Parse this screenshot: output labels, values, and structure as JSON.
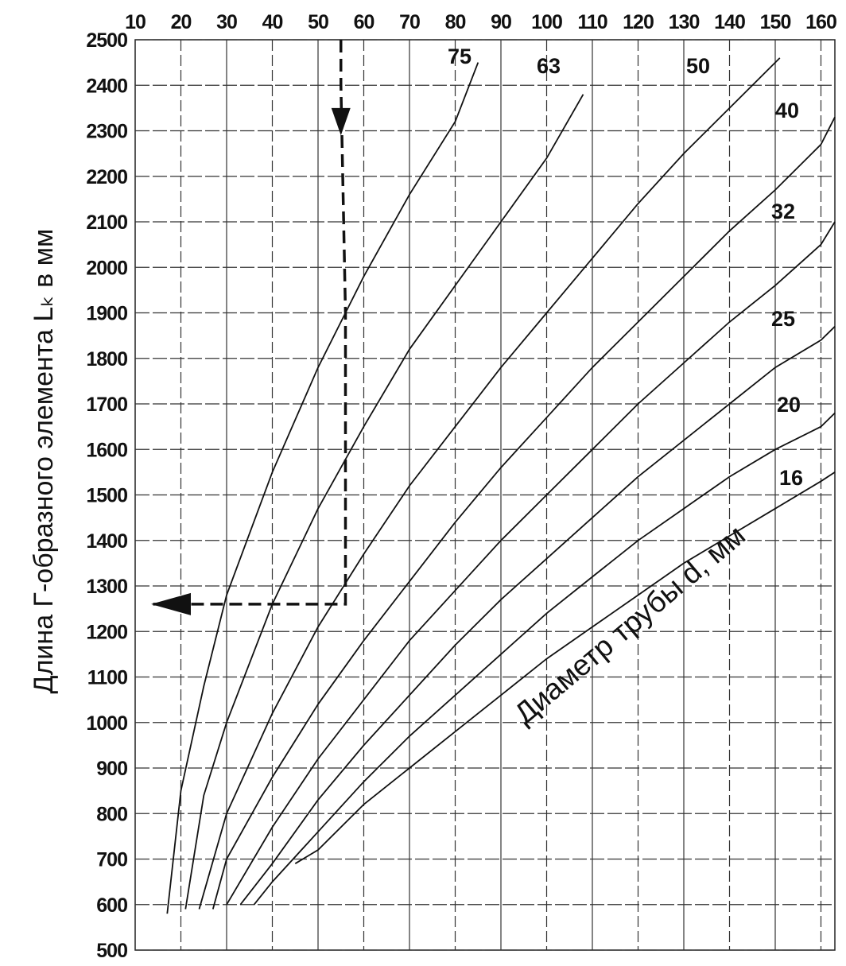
{
  "chart_data": {
    "type": "line",
    "ylabel": "Длина Г-образного элемента Lₖ в мм",
    "annotation": "Диаметр трубы d, мм",
    "x_ticks": [
      "10",
      "20",
      "30",
      "40",
      "50",
      "60",
      "70",
      "80",
      "90",
      "100",
      "110",
      "120",
      "130",
      "140",
      "150",
      "160"
    ],
    "y_ticks": [
      "2500",
      "2400",
      "2300",
      "2200",
      "2100",
      "2000",
      "1900",
      "1800",
      "1700",
      "1600",
      "1500",
      "1400",
      "1300",
      "1200",
      "1100",
      "1000",
      "900",
      "800",
      "700",
      "600",
      "500"
    ],
    "xlim": [
      10,
      160
    ],
    "ylim": [
      500,
      2500
    ],
    "grid": true,
    "series": [
      {
        "name": "75",
        "x": [
          17,
          20,
          25,
          30,
          40,
          50,
          60,
          70,
          80,
          85
        ],
        "y": [
          580,
          850,
          1080,
          1280,
          1550,
          1780,
          1980,
          2160,
          2320,
          2450
        ]
      },
      {
        "name": "63",
        "x": [
          21,
          25,
          30,
          40,
          50,
          60,
          70,
          80,
          90,
          100,
          108
        ],
        "y": [
          590,
          840,
          1000,
          1260,
          1470,
          1650,
          1820,
          1960,
          2100,
          2240,
          2380
        ]
      },
      {
        "name": "50",
        "x": [
          24,
          30,
          40,
          50,
          60,
          70,
          80,
          90,
          100,
          110,
          120,
          130,
          140,
          151
        ],
        "y": [
          590,
          800,
          1020,
          1210,
          1370,
          1520,
          1650,
          1780,
          1900,
          2020,
          2140,
          2250,
          2350,
          2460
        ]
      },
      {
        "name": "40",
        "x": [
          27,
          30,
          40,
          50,
          60,
          70,
          80,
          90,
          100,
          110,
          120,
          130,
          140,
          150,
          160,
          166
        ],
        "y": [
          590,
          700,
          880,
          1040,
          1180,
          1310,
          1440,
          1560,
          1670,
          1780,
          1880,
          1980,
          2080,
          2170,
          2270,
          2330
        ]
      },
      {
        "name": "32",
        "x": [
          30,
          40,
          50,
          60,
          70,
          80,
          90,
          100,
          110,
          120,
          130,
          140,
          150,
          160,
          166
        ],
        "y": [
          600,
          770,
          920,
          1050,
          1180,
          1290,
          1400,
          1500,
          1600,
          1700,
          1790,
          1880,
          1960,
          2050,
          2100
        ]
      },
      {
        "name": "25",
        "x": [
          33,
          40,
          50,
          60,
          70,
          80,
          90,
          100,
          110,
          120,
          130,
          140,
          150,
          160,
          166
        ],
        "y": [
          600,
          690,
          830,
          950,
          1060,
          1170,
          1270,
          1360,
          1450,
          1540,
          1620,
          1700,
          1780,
          1840,
          1870
        ]
      },
      {
        "name": "20",
        "x": [
          36,
          40,
          50,
          60,
          70,
          80,
          90,
          100,
          110,
          120,
          130,
          140,
          150,
          160,
          166
        ],
        "y": [
          600,
          650,
          760,
          870,
          970,
          1060,
          1150,
          1240,
          1320,
          1400,
          1470,
          1540,
          1600,
          1650,
          1680
        ]
      },
      {
        "name": "16",
        "x": [
          45,
          50,
          60,
          70,
          80,
          90,
          100,
          110,
          120,
          130,
          140,
          150,
          160,
          166
        ],
        "y": [
          690,
          720,
          820,
          900,
          980,
          1060,
          1140,
          1210,
          1280,
          1350,
          1410,
          1470,
          1530,
          1550
        ]
      }
    ],
    "example_path": {
      "x_start": 55,
      "y_start": 2500,
      "x_turn": 56,
      "y_turn": 1260
    }
  }
}
